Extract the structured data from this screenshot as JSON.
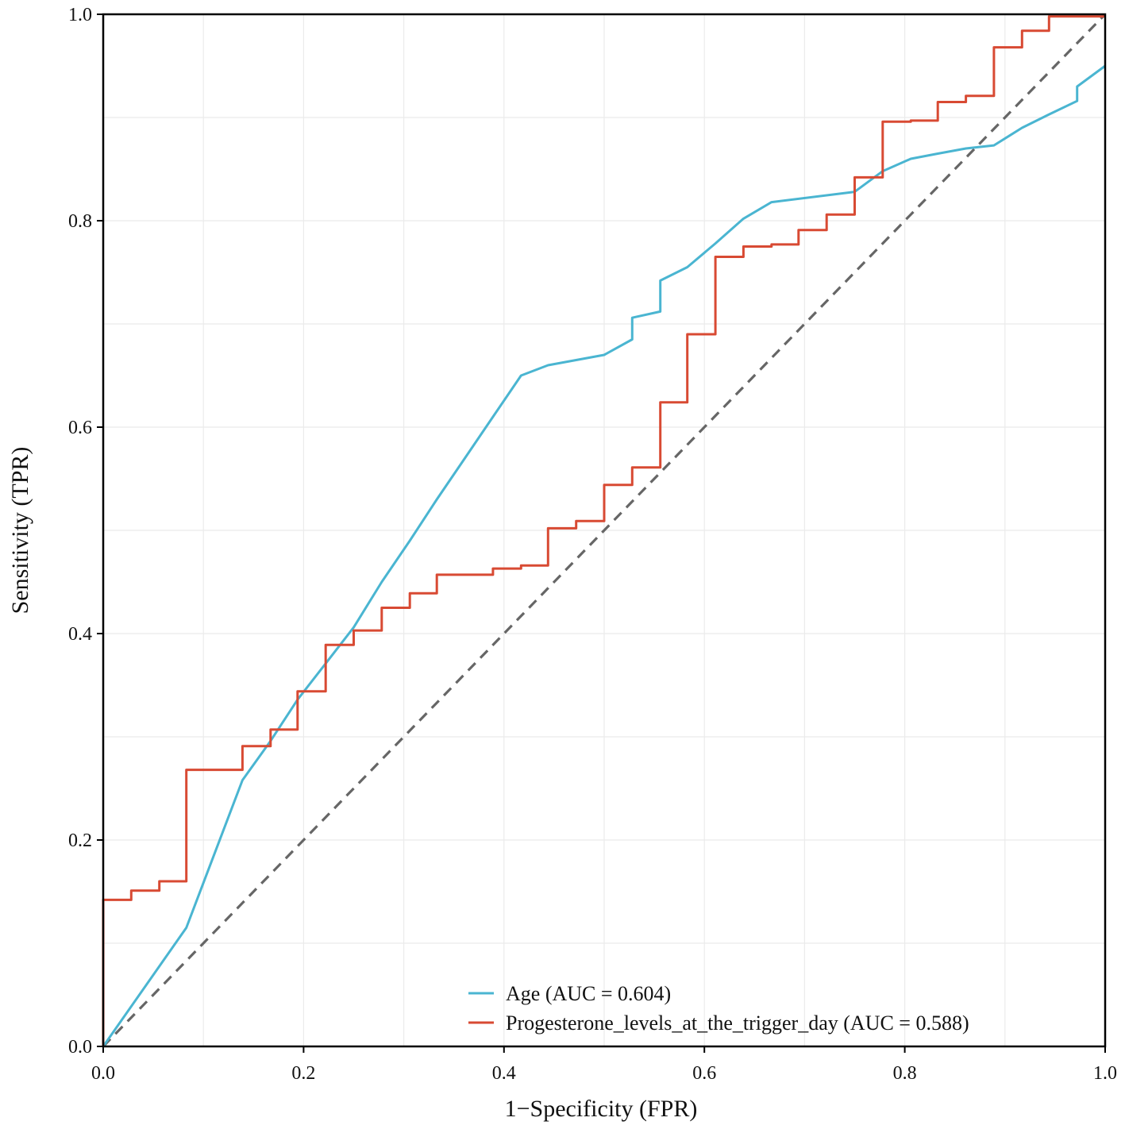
{
  "chart_data": {
    "type": "line",
    "xlabel": "1−Specificity (FPR)",
    "ylabel": "Sensitivity (TPR)",
    "xlim": [
      0,
      1
    ],
    "ylim": [
      0,
      1
    ],
    "x_ticks": [
      "0.0",
      "0.2",
      "0.4",
      "0.6",
      "0.8",
      "1.0"
    ],
    "y_ticks": [
      "0.0",
      "0.2",
      "0.4",
      "0.6",
      "0.8",
      "1.0"
    ],
    "grid": true,
    "legend_position": "bottom-right",
    "reference_line": {
      "name": "chance",
      "x": [
        0,
        1
      ],
      "y": [
        0,
        1
      ],
      "color": "#666666",
      "dashed": true
    },
    "series": [
      {
        "name": "Age (AUC = 0.604)",
        "color": "#4ab5d1",
        "x": [
          0.0,
          0.083,
          0.139,
          0.167,
          0.194,
          0.222,
          0.25,
          0.278,
          0.306,
          0.333,
          0.361,
          0.389,
          0.417,
          0.444,
          0.5,
          0.528,
          0.528,
          0.556,
          0.556,
          0.583,
          0.611,
          0.639,
          0.667,
          0.75,
          0.778,
          0.806,
          0.833,
          0.861,
          0.889,
          0.917,
          0.944,
          0.972,
          0.972,
          1.0
        ],
        "y": [
          0.0,
          0.115,
          0.258,
          0.296,
          0.336,
          0.371,
          0.406,
          0.45,
          0.49,
          0.53,
          0.57,
          0.61,
          0.65,
          0.66,
          0.67,
          0.685,
          0.706,
          0.712,
          0.742,
          0.755,
          0.778,
          0.802,
          0.818,
          0.828,
          0.848,
          0.86,
          0.865,
          0.87,
          0.873,
          0.89,
          0.903,
          0.916,
          0.93,
          0.95
        ]
      },
      {
        "name": "Progesterone_levels_at_the_trigger_day (AUC = 0.588)",
        "color": "#d84a33",
        "x": [
          0.0,
          0.0,
          0.028,
          0.028,
          0.056,
          0.056,
          0.083,
          0.083,
          0.139,
          0.139,
          0.167,
          0.167,
          0.194,
          0.194,
          0.222,
          0.222,
          0.25,
          0.25,
          0.278,
          0.278,
          0.306,
          0.306,
          0.333,
          0.333,
          0.389,
          0.389,
          0.417,
          0.417,
          0.444,
          0.444,
          0.472,
          0.472,
          0.5,
          0.5,
          0.528,
          0.528,
          0.556,
          0.556,
          0.583,
          0.583,
          0.611,
          0.611,
          0.639,
          0.639,
          0.667,
          0.667,
          0.694,
          0.694,
          0.722,
          0.722,
          0.75,
          0.75,
          0.778,
          0.778,
          0.806,
          0.806,
          0.833,
          0.833,
          0.861,
          0.861,
          0.889,
          0.889,
          0.917,
          0.917,
          0.944,
          0.944,
          1.0
        ],
        "y": [
          0.0,
          0.142,
          0.142,
          0.151,
          0.151,
          0.16,
          0.16,
          0.268,
          0.268,
          0.291,
          0.291,
          0.307,
          0.307,
          0.344,
          0.344,
          0.389,
          0.389,
          0.403,
          0.403,
          0.425,
          0.425,
          0.439,
          0.439,
          0.457,
          0.457,
          0.463,
          0.463,
          0.466,
          0.466,
          0.502,
          0.502,
          0.509,
          0.509,
          0.544,
          0.544,
          0.561,
          0.561,
          0.624,
          0.624,
          0.69,
          0.69,
          0.765,
          0.765,
          0.775,
          0.775,
          0.777,
          0.777,
          0.791,
          0.791,
          0.806,
          0.806,
          0.842,
          0.842,
          0.896,
          0.896,
          0.897,
          0.897,
          0.915,
          0.915,
          0.921,
          0.921,
          0.968,
          0.968,
          0.984,
          0.984,
          0.998,
          0.998
        ]
      }
    ]
  }
}
